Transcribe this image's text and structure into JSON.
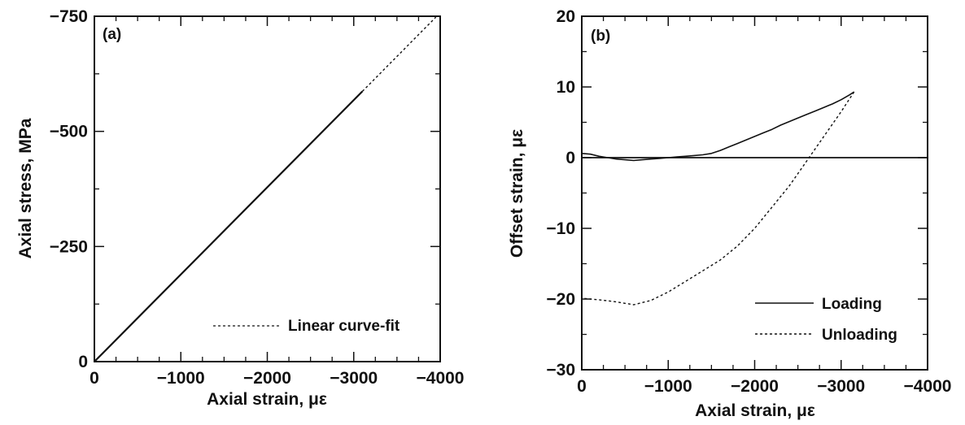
{
  "chart_data": [
    {
      "type": "line",
      "panel_label": "(a)",
      "xlabel": "Axial strain, με",
      "ylabel": "Axial stress, MPa",
      "xlim": [
        0,
        -4000
      ],
      "ylim": [
        0,
        -750
      ],
      "x_ticks": [
        0,
        -1000,
        -2000,
        -3000,
        -4000
      ],
      "x_tick_labels": [
        "0",
        "−1000",
        "−2000",
        "−3000",
        "−4000"
      ],
      "y_ticks": [
        0,
        -250,
        -500,
        -750
      ],
      "y_tick_labels": [
        "0",
        "−250",
        "−500",
        "−750"
      ],
      "grid": false,
      "legend_position": "bottom-right",
      "series": [
        {
          "name": "",
          "style": "solid",
          "x": [
            0,
            -3100
          ],
          "y": [
            0,
            -587
          ]
        },
        {
          "name": "Linear curve-fit",
          "style": "dashed",
          "x": [
            -3100,
            -3950
          ],
          "y": [
            -587,
            -748
          ]
        }
      ]
    },
    {
      "type": "line",
      "panel_label": "(b)",
      "xlabel": "Axial strain, με",
      "ylabel": "Offset strain, με",
      "xlim": [
        0,
        -4000
      ],
      "ylim": [
        -30,
        20
      ],
      "x_ticks": [
        0,
        -1000,
        -2000,
        -3000,
        -4000
      ],
      "x_tick_labels": [
        "0",
        "−1000",
        "−2000",
        "−3000",
        "−4000"
      ],
      "y_ticks": [
        20,
        10,
        0,
        -10,
        -20,
        -30
      ],
      "y_tick_labels": [
        "20",
        "10",
        "0",
        "−10",
        "−20",
        "−30"
      ],
      "reference_line_y": 0,
      "grid": false,
      "legend_position": "bottom-right",
      "series": [
        {
          "name": "Loading",
          "style": "solid",
          "x": [
            0,
            -100,
            -200,
            -300,
            -400,
            -500,
            -600,
            -700,
            -800,
            -900,
            -1000,
            -1100,
            -1200,
            -1300,
            -1400,
            -1500,
            -1600,
            -1700,
            -1800,
            -1900,
            -2000,
            -2100,
            -2200,
            -2300,
            -2400,
            -2500,
            -2600,
            -2700,
            -2800,
            -2900,
            -3000,
            -3100,
            -3150
          ],
          "y": [
            0.6,
            0.5,
            0.2,
            0.0,
            -0.2,
            -0.3,
            -0.4,
            -0.3,
            -0.2,
            -0.1,
            0.0,
            0.1,
            0.2,
            0.3,
            0.4,
            0.6,
            1.0,
            1.5,
            2.0,
            2.5,
            3.0,
            3.5,
            4.0,
            4.6,
            5.1,
            5.6,
            6.1,
            6.6,
            7.1,
            7.6,
            8.2,
            8.9,
            9.3
          ]
        },
        {
          "name": "Unloading",
          "style": "dashed",
          "x": [
            -3150,
            -3000,
            -2800,
            -2600,
            -2400,
            -2200,
            -2000,
            -1800,
            -1600,
            -1400,
            -1200,
            -1000,
            -800,
            -600,
            -400,
            -200,
            0
          ],
          "y": [
            9.3,
            6.5,
            3.0,
            -0.5,
            -4.0,
            -7.0,
            -10.0,
            -12.5,
            -14.5,
            -16.0,
            -17.5,
            -19.0,
            -20.2,
            -20.8,
            -20.4,
            -20.1,
            -19.9
          ]
        }
      ]
    }
  ]
}
